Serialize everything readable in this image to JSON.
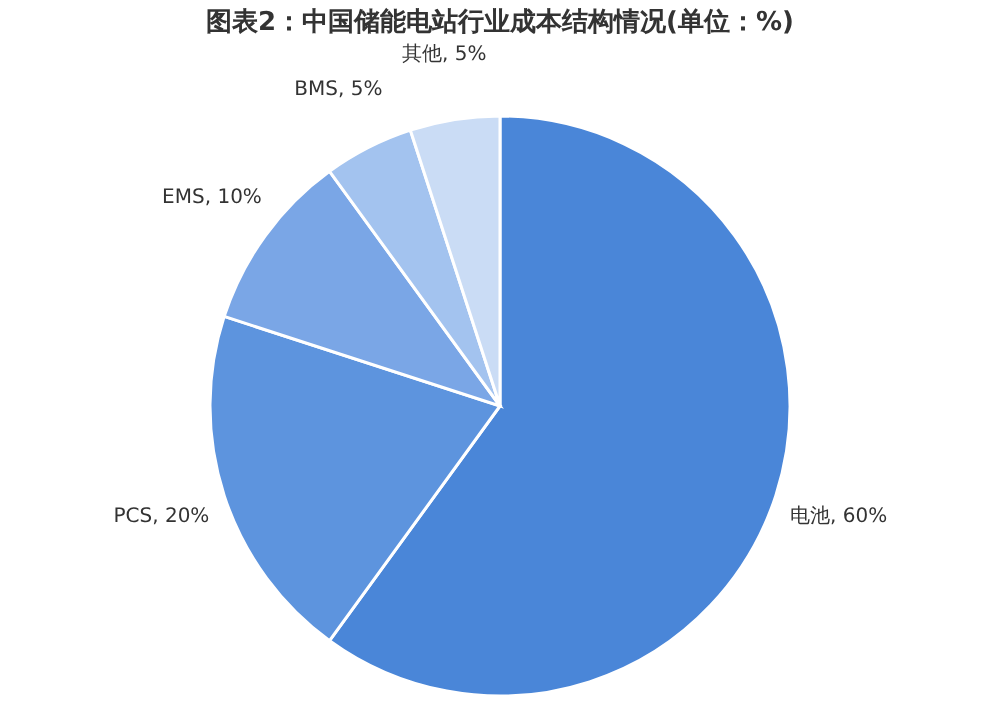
{
  "chart_data": {
    "type": "pie",
    "title": "图表2：中国储能电站行业成本结构情况(单位：%)",
    "categories": [
      "电池",
      "PCS",
      "EMS",
      "BMS",
      "其他"
    ],
    "values": [
      60,
      20,
      10,
      5,
      5
    ],
    "value_labels": [
      "60%",
      "20%",
      "10%",
      "5%",
      "5%"
    ],
    "colors": [
      "#4a86d8",
      "#5d94de",
      "#7aa6e6",
      "#a3c3ef",
      "#cadcf5"
    ],
    "legend": false
  }
}
